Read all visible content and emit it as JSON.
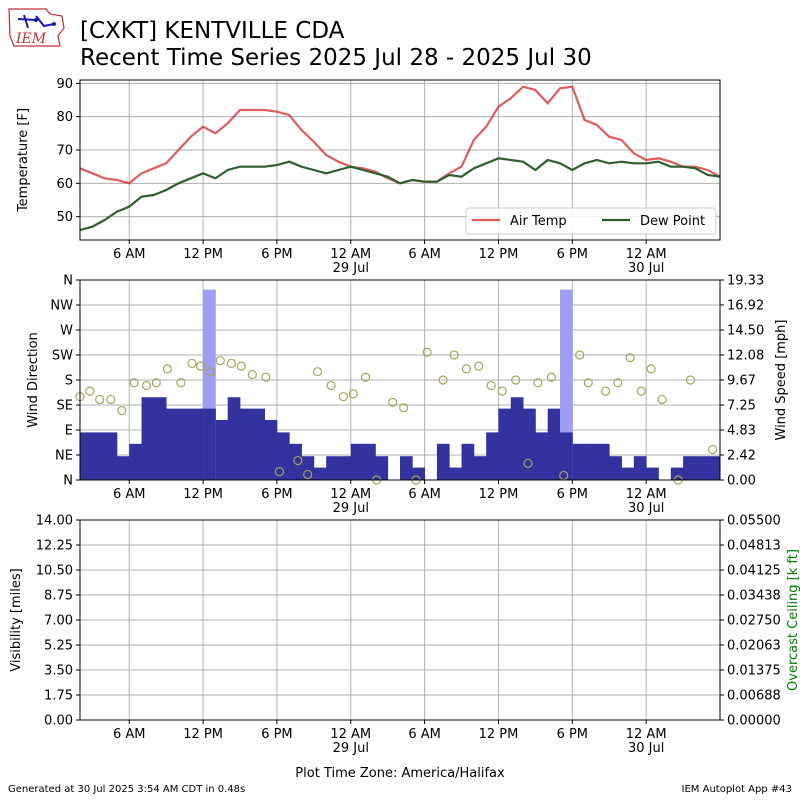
{
  "header": {
    "title_line1": "[CXKT] KENTVILLE CDA",
    "title_line2": "Recent Time Series 2025 Jul 28 - 2025 Jul 30",
    "logo_text": "IEM"
  },
  "footer": {
    "generated": "Generated at 30 Jul 2025 3:54 AM CDT in 0.48s",
    "app": "IEM Autoplot App #43"
  },
  "xaxis": {
    "label": "Plot Time Zone: America/Halifax",
    "start_hour": 2,
    "end_hour": 54,
    "ticks": [
      {
        "h": 6,
        "label": "6 AM",
        "sub": ""
      },
      {
        "h": 12,
        "label": "12 PM",
        "sub": ""
      },
      {
        "h": 18,
        "label": "6 PM",
        "sub": ""
      },
      {
        "h": 24,
        "label": "12 AM",
        "sub": "29 Jul"
      },
      {
        "h": 30,
        "label": "6 AM",
        "sub": ""
      },
      {
        "h": 36,
        "label": "12 PM",
        "sub": ""
      },
      {
        "h": 42,
        "label": "6 PM",
        "sub": ""
      },
      {
        "h": 48,
        "label": "12 AM",
        "sub": "30 Jul"
      }
    ]
  },
  "chart_data": [
    {
      "type": "line",
      "ylabel": "Temperature [F]",
      "ylim": [
        43,
        91
      ],
      "yticks": [
        50,
        60,
        70,
        80,
        90
      ],
      "grid": true,
      "legend": {
        "placement": "lower-right",
        "entries": [
          "Air Temp",
          "Dew Point"
        ]
      },
      "x_hours": [
        2,
        3,
        4,
        5,
        6,
        7,
        8,
        9,
        10,
        11,
        12,
        13,
        14,
        15,
        16,
        17,
        18,
        19,
        20,
        21,
        22,
        23,
        24,
        25,
        26,
        27,
        28,
        29,
        30,
        31,
        32,
        33,
        34,
        35,
        36,
        37,
        38,
        39,
        40,
        41,
        42,
        43,
        44,
        45,
        46,
        47,
        48,
        49,
        50,
        51,
        52,
        53,
        54
      ],
      "series": [
        {
          "name": "Air Temp",
          "color": "#d62728",
          "values": [
            64.5,
            63,
            61.5,
            61,
            60,
            63,
            64.5,
            66,
            70,
            74,
            77,
            75,
            78,
            82,
            82,
            82,
            81.5,
            80.5,
            76,
            72.5,
            68.5,
            66.5,
            65,
            64.5,
            63.5,
            61.5,
            60,
            61,
            60.5,
            60.5,
            63,
            65,
            73,
            77,
            83,
            85.5,
            89,
            88,
            84,
            88.5,
            89,
            79,
            77.5,
            74,
            73,
            69,
            67,
            67.5,
            66.5,
            65,
            65,
            64,
            62
          ]
        },
        {
          "name": "Dew Point",
          "color": "#2f5f2f",
          "values": [
            46,
            47,
            49,
            51.5,
            53,
            56,
            56.5,
            58,
            60,
            61.5,
            63,
            61.5,
            64,
            65,
            65,
            65,
            65.5,
            66.5,
            65,
            64,
            63,
            64,
            65,
            64,
            63,
            62,
            60,
            61,
            60.5,
            60.5,
            62.5,
            62,
            64.5,
            66,
            67.5,
            67,
            66.5,
            64,
            67,
            66,
            64,
            66,
            67,
            66,
            66.5,
            66,
            66,
            66.5,
            65,
            65,
            64.5,
            62.5,
            62
          ]
        }
      ]
    },
    {
      "type": "bar",
      "ylabel": "Wind Direction",
      "y2label": "Wind Speed [mph]",
      "direction_ticks": [
        "N",
        "NE",
        "E",
        "SE",
        "S",
        "SW",
        "W",
        "NW",
        "N"
      ],
      "speed_ylim": [
        0,
        19.33
      ],
      "speed_ticks": [
        "0.00",
        "2.42",
        "4.83",
        "7.25",
        "9.67",
        "12.08",
        "14.50",
        "16.92",
        "19.33"
      ],
      "grid": true,
      "bar_width_hours": 1,
      "series": [
        {
          "name": "",
          "color": "#3333a0",
          "x_hours": [
            2,
            3,
            4,
            5,
            6,
            7,
            8,
            9,
            10,
            11,
            12,
            13,
            14,
            15,
            16,
            17,
            18,
            19,
            20,
            21,
            22,
            23,
            24,
            25,
            26,
            27,
            28,
            29,
            30,
            31,
            32,
            33,
            34,
            35,
            36,
            37,
            38,
            39,
            40,
            41,
            42,
            43,
            44,
            45,
            46,
            47,
            48,
            49,
            50,
            51,
            52,
            53
          ],
          "values": [
            4.6,
            4.6,
            4.6,
            2.3,
            3.5,
            8,
            8,
            6.9,
            6.9,
            6.9,
            6.9,
            5.8,
            8,
            6.9,
            6.9,
            5.8,
            4.6,
            3.5,
            2.3,
            1.2,
            2.3,
            2.3,
            3.5,
            3.5,
            2.3,
            0,
            2.3,
            1.2,
            0,
            3.5,
            1.2,
            3.5,
            2.3,
            4.6,
            6.9,
            8,
            6.9,
            4.6,
            6.9,
            4.6,
            3.5,
            3.5,
            3.5,
            2.3,
            1.2,
            2.3,
            1.2,
            0,
            1.2,
            2.3,
            2.3,
            2.3
          ]
        },
        {
          "name": "",
          "color": "#9e9ef5",
          "x_hours": [
            12,
            41
          ],
          "values": [
            18.4,
            18.4
          ]
        }
      ],
      "direction_points": {
        "color": "#a5a55a",
        "x_hours": [
          2,
          2.8,
          3.6,
          4.5,
          5.4,
          6.4,
          7.4,
          8.2,
          9.1,
          10.2,
          11.1,
          11.8,
          12.6,
          13.4,
          14.3,
          15.1,
          16,
          17.1,
          18.2,
          19.7,
          20.5,
          21.3,
          22.4,
          23.4,
          24.2,
          25.2,
          26.1,
          27.4,
          28.3,
          29.3,
          30.2,
          31.5,
          32.4,
          33.4,
          34.4,
          35.4,
          36.3,
          37.4,
          38.4,
          39.2,
          40.3,
          41.3,
          42.6,
          43.3,
          44.7,
          45.7,
          46.7,
          47.6,
          48.4,
          49.3,
          50.6,
          51.6,
          53.4
        ],
        "values": [
          150,
          160,
          145,
          145,
          125,
          175,
          170,
          175,
          200,
          175,
          210,
          205,
          195,
          215,
          210,
          205,
          190,
          185,
          15,
          35,
          10,
          195,
          170,
          150,
          155,
          185,
          0,
          140,
          130,
          0,
          230,
          180,
          225,
          200,
          205,
          170,
          160,
          180,
          30,
          175,
          185,
          8,
          225,
          175,
          160,
          175,
          220,
          160,
          200,
          145,
          0,
          180,
          55
        ]
      }
    },
    {
      "type": "line",
      "ylabel": "Visibility [miles]",
      "y2label": "Overcast Ceiling [k ft]",
      "y2color": "#008000",
      "ylim": [
        0,
        14
      ],
      "yticks": [
        "0.00",
        "1.75",
        "3.50",
        "5.25",
        "7.00",
        "8.75",
        "10.50",
        "12.25",
        "14.00"
      ],
      "y2lim": [
        0,
        0.055
      ],
      "y2ticks": [
        "0.00000",
        "0.00688",
        "0.01375",
        "0.02063",
        "0.02750",
        "0.03438",
        "0.04125",
        "0.04813",
        "0.05500"
      ],
      "grid": true,
      "series": []
    }
  ]
}
